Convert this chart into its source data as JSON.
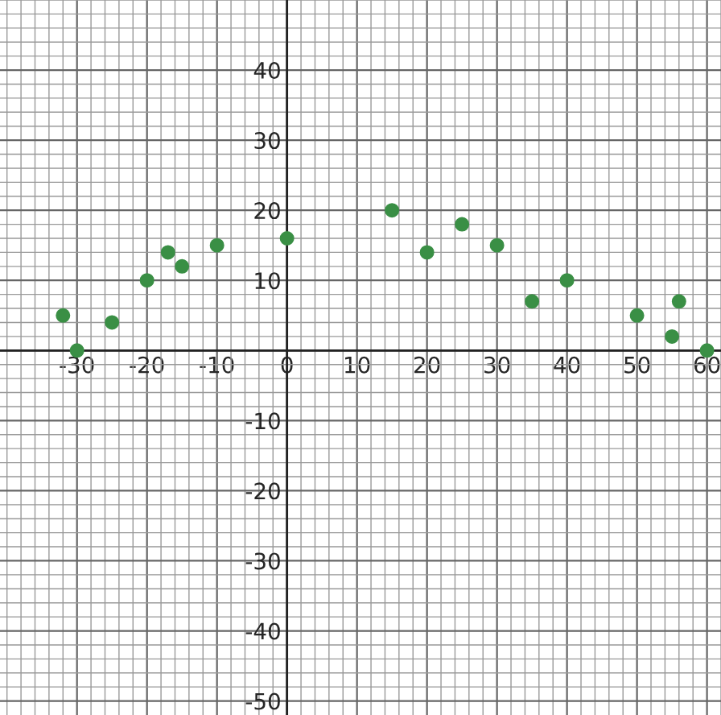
{
  "chart_data": {
    "type": "scatter",
    "x": [
      -32,
      -30,
      -25,
      -20,
      -17,
      -15,
      -10,
      0,
      15,
      20,
      25,
      30,
      35,
      40,
      50,
      55,
      56,
      60
    ],
    "series": [
      {
        "color": "#3a8f45",
        "values": [
          5,
          0,
          4,
          10,
          14,
          12,
          15,
          16,
          20,
          14,
          18,
          15,
          7,
          10,
          5,
          2,
          7,
          0
        ]
      }
    ],
    "xlim": [
      -41,
      62
    ],
    "ylim": [
      -52,
      50
    ],
    "xticks": [
      -30,
      -20,
      -10,
      0,
      10,
      20,
      30,
      40,
      50,
      60
    ],
    "yticks": [
      -50,
      -40,
      -30,
      -20,
      -10,
      {
        "value": 0,
        "label": null
      },
      10,
      20,
      30,
      40
    ],
    "grid": true,
    "marker": "circle"
  }
}
